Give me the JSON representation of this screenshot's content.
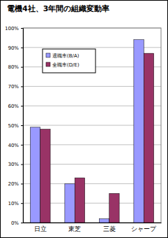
{
  "chart_data": {
    "type": "bar",
    "title": "電機4社、3年間の組織変動率",
    "categories": [
      "日立",
      "東芝",
      "三菱",
      "シャープ"
    ],
    "series": [
      {
        "name": "退職率(B/A)",
        "color": "#9999ff",
        "values": [
          49,
          20,
          2,
          94
        ]
      },
      {
        "name": "全職率(D/E)",
        "color": "#993366",
        "values": [
          48,
          23,
          15,
          87
        ]
      }
    ],
    "ylim": [
      0,
      100
    ],
    "yticks": [
      {
        "value": 0,
        "label": "0%"
      },
      {
        "value": 10,
        "label": "10%"
      },
      {
        "value": 20,
        "label": "20%"
      },
      {
        "value": 30,
        "label": "30%"
      },
      {
        "value": 40,
        "label": "40%"
      },
      {
        "value": 50,
        "label": "50%"
      },
      {
        "value": 60,
        "label": "60%"
      },
      {
        "value": 70,
        "label": "70%"
      },
      {
        "value": 80,
        "label": "80%"
      },
      {
        "value": 90,
        "label": "90%"
      },
      {
        "value": 100,
        "label": "100%"
      }
    ],
    "grid": true,
    "legend": "upper-left"
  }
}
